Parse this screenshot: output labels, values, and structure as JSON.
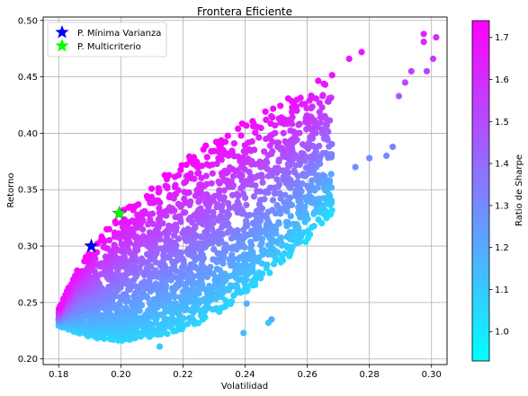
{
  "chart_data": {
    "type": "scatter",
    "title": "Frontera Eficiente",
    "xlabel": "Volatilidad",
    "ylabel": "Retorno",
    "xlim": [
      0.175,
      0.305
    ],
    "ylim": [
      0.195,
      0.503
    ],
    "xticks": [
      0.18,
      0.2,
      0.22,
      0.24,
      0.26,
      0.28,
      0.3
    ],
    "xtick_labels": [
      "0.18",
      "0.20",
      "0.22",
      "0.24",
      "0.26",
      "0.28",
      "0.30"
    ],
    "yticks": [
      0.2,
      0.25,
      0.3,
      0.35,
      0.4,
      0.45,
      0.5
    ],
    "ytick_labels": [
      "0.20",
      "0.25",
      "0.30",
      "0.35",
      "0.40",
      "0.45",
      "0.50"
    ],
    "grid": true,
    "colormap": "cool",
    "colormap_colors": [
      "#00ffff",
      "#ff00ff"
    ],
    "colorbar": {
      "label": "Ratio de Sharpe",
      "range": [
        0.93,
        1.74
      ],
      "ticks": [
        1.0,
        1.1,
        1.2,
        1.3,
        1.4,
        1.5,
        1.6,
        1.7
      ],
      "tick_labels": [
        "1.0",
        "1.1",
        "1.2",
        "1.3",
        "1.4",
        "1.5",
        "1.6",
        "1.7"
      ]
    },
    "legend": {
      "placement": "upper-left",
      "entries": [
        {
          "label": "P. Mínima Varianza",
          "color": "#0000ff",
          "marker": "star"
        },
        {
          "label": "P. Multicriterio",
          "color": "#00ff00",
          "marker": "star"
        }
      ]
    },
    "highlights": [
      {
        "name": "P. Mínima Varianza",
        "x": 0.1905,
        "y": 0.3,
        "color": "#0000ff"
      },
      {
        "name": "P. Multicriterio",
        "x": 0.1995,
        "y": 0.329,
        "color": "#00ff00"
      }
    ],
    "frontier_upper": [
      {
        "x": 0.18,
        "y": 0.245
      },
      {
        "x": 0.185,
        "y": 0.278
      },
      {
        "x": 0.1905,
        "y": 0.3
      },
      {
        "x": 0.1995,
        "y": 0.329
      },
      {
        "x": 0.21,
        "y": 0.355
      },
      {
        "x": 0.22,
        "y": 0.377
      },
      {
        "x": 0.23,
        "y": 0.395
      },
      {
        "x": 0.24,
        "y": 0.412
      },
      {
        "x": 0.25,
        "y": 0.428
      },
      {
        "x": 0.26,
        "y": 0.442
      },
      {
        "x": 0.27,
        "y": 0.457
      },
      {
        "x": 0.28,
        "y": 0.468
      },
      {
        "x": 0.29,
        "y": 0.478
      },
      {
        "x": 0.3,
        "y": 0.49
      }
    ],
    "frontier_lower": [
      {
        "x": 0.18,
        "y": 0.229
      },
      {
        "x": 0.19,
        "y": 0.219
      },
      {
        "x": 0.2,
        "y": 0.216
      },
      {
        "x": 0.21,
        "y": 0.219
      },
      {
        "x": 0.22,
        "y": 0.225
      },
      {
        "x": 0.23,
        "y": 0.238
      },
      {
        "x": 0.24,
        "y": 0.258
      },
      {
        "x": 0.25,
        "y": 0.28
      },
      {
        "x": 0.26,
        "y": 0.305
      },
      {
        "x": 0.27,
        "y": 0.335
      },
      {
        "x": 0.28,
        "y": 0.372
      },
      {
        "x": 0.29,
        "y": 0.425
      },
      {
        "x": 0.3,
        "y": 0.458
      }
    ],
    "outliers": [
      {
        "x": 0.2975,
        "y": 0.488,
        "sharpe": 1.62
      },
      {
        "x": 0.3015,
        "y": 0.485,
        "sharpe": 1.6
      },
      {
        "x": 0.2975,
        "y": 0.481,
        "sharpe": 1.62
      },
      {
        "x": 0.3005,
        "y": 0.466,
        "sharpe": 1.55
      },
      {
        "x": 0.2985,
        "y": 0.455,
        "sharpe": 1.52
      },
      {
        "x": 0.2935,
        "y": 0.455,
        "sharpe": 1.55
      },
      {
        "x": 0.2775,
        "y": 0.472,
        "sharpe": 1.68
      },
      {
        "x": 0.2735,
        "y": 0.466,
        "sharpe": 1.68
      },
      {
        "x": 0.2915,
        "y": 0.445,
        "sharpe": 1.5
      },
      {
        "x": 0.2895,
        "y": 0.433,
        "sharpe": 1.45
      },
      {
        "x": 0.2855,
        "y": 0.38,
        "sharpe": 1.3
      },
      {
        "x": 0.28,
        "y": 0.378,
        "sharpe": 1.3
      },
      {
        "x": 0.2875,
        "y": 0.388,
        "sharpe": 1.32
      },
      {
        "x": 0.2755,
        "y": 0.37,
        "sharpe": 1.28
      },
      {
        "x": 0.2625,
        "y": 0.338,
        "sharpe": 1.22
      },
      {
        "x": 0.2485,
        "y": 0.235,
        "sharpe": 1.2
      },
      {
        "x": 0.2395,
        "y": 0.223,
        "sharpe": 1.15
      },
      {
        "x": 0.2125,
        "y": 0.211,
        "sharpe": 1.1
      },
      {
        "x": 0.2475,
        "y": 0.232,
        "sharpe": 1.12
      },
      {
        "x": 0.2405,
        "y": 0.249,
        "sharpe": 1.18
      }
    ]
  }
}
